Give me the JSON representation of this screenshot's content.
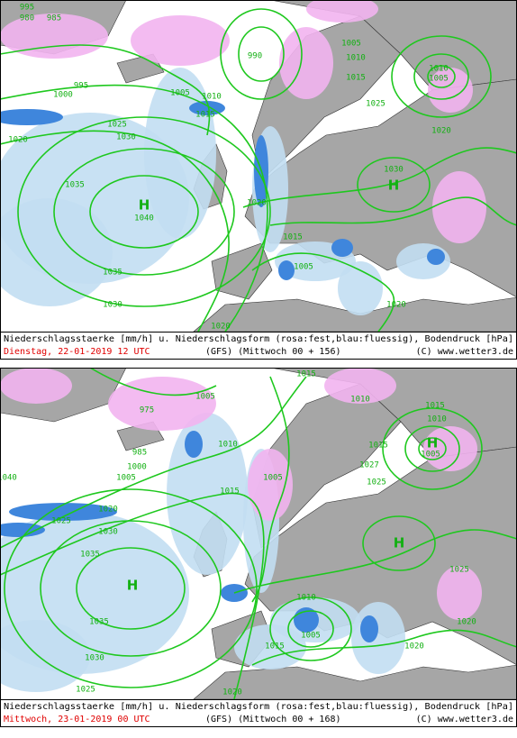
{
  "panels": [
    {
      "caption": "Niederschlagsstaerke [mm/h] u. Niederschlagsform (rosa:fest,blau:fluessig), Bodendruck [hPa]",
      "date": "Dienstag, 22-01-2019  12 UTC",
      "model": "(GFS)  (Mittwoch 00 + 156)",
      "source": "(C) www.wetter3.de",
      "isobar_labels": [
        "995",
        "980",
        "985",
        "995",
        "1000",
        "1005",
        "1010",
        "1015",
        "1020",
        "1025",
        "1030",
        "1035",
        "H",
        "1040",
        "1035",
        "1030",
        "990",
        "1005",
        "1010",
        "1015",
        "1025",
        "1010",
        "1005",
        "1020",
        "1030",
        "H",
        "1020",
        "1015",
        "1005",
        "1020",
        "1020"
      ]
    },
    {
      "caption": "Niederschlagsstaerke [mm/h] u. Niederschlagsform (rosa:fest,blau:fluessig), Bodendruck [hPa]",
      "date": "Mittwoch, 23-01-2019  00 UTC",
      "model": "(GFS)  (Mittwoch 00 + 168)",
      "source": "(C) www.wetter3.de",
      "isobar_labels": [
        "975",
        "1005",
        "1010",
        "985",
        "1000",
        "1005",
        "1040",
        "1020",
        "1025",
        "1030",
        "1035",
        "H",
        "1035",
        "1030",
        "1025",
        "1015",
        "1005",
        "1015",
        "1010",
        "1010",
        "1015",
        "H",
        "1005",
        "1015",
        "1027",
        "1025",
        "H",
        "1010",
        "1005",
        "1015",
        "1020",
        "1020",
        "1025",
        "1020"
      ]
    }
  ]
}
